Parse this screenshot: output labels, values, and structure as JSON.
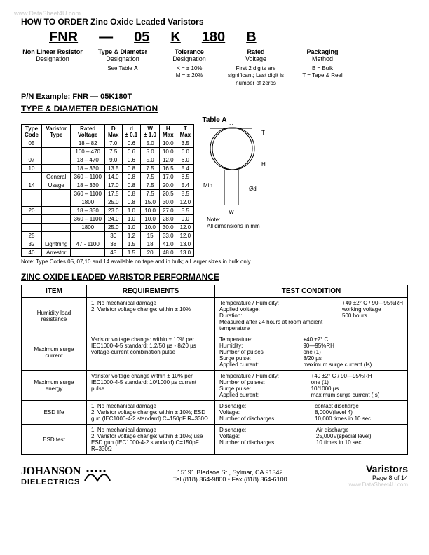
{
  "watermark_top": "www.DataSheet4U.com",
  "title": "HOW TO ORDER Zinc Oxide Leaded Varistors",
  "order_codes": {
    "fnr": "FNR",
    "dash": "—",
    "d05": "05",
    "k": "K",
    "v180": "180",
    "b": "B"
  },
  "order_desc": {
    "fnr": {
      "t": "Non Linear Resistor",
      "s": "Designation"
    },
    "d05": {
      "t": "Type & Diameter",
      "s": "Designation",
      "note": "See Table A"
    },
    "k": {
      "t": "Tolerance",
      "s": "Designation",
      "note": "K = ± 10%\nM = ± 20%"
    },
    "v180": {
      "t": "Rated",
      "s": "Voltage",
      "note": "First 2 digits are significant; Last digit is number of zeros"
    },
    "b": {
      "t": "Packaging",
      "s": "Method",
      "note": "B = Bulk\nT = Tape & Reel"
    }
  },
  "pn_label": "P/N Example:  FNR — 05K180T",
  "section_tableA": "TYPE & DIAMETER DESIGNATION",
  "tableA_caption": "Table A",
  "tableA_headers": [
    "Type Code",
    "Varistor Type",
    "Rated Voltage",
    "D Max",
    "d ± 0.1",
    "W ± 1.0",
    "H Max",
    "T Max"
  ],
  "tableA_rows": [
    [
      "05",
      "",
      "18 – 82",
      "7.0",
      "0.6",
      "5.0",
      "10.0",
      "3.5"
    ],
    [
      "",
      "",
      "100 – 470",
      "7.5",
      "0.6",
      "5.0",
      "10.0",
      "6.0"
    ],
    [
      "07",
      "",
      "18 – 470",
      "9.0",
      "0.6",
      "5.0",
      "12.0",
      "6.0"
    ],
    [
      "10",
      "",
      "18 – 330",
      "13.5",
      "0.8",
      "7.5",
      "16.5",
      "5.4"
    ],
    [
      "",
      "General",
      "360 – 1100",
      "14.0",
      "0.8",
      "7.5",
      "17.0",
      "8.5"
    ],
    [
      "14",
      "Usage",
      "18 – 330",
      "17.0",
      "0.8",
      "7.5",
      "20.0",
      "5.4"
    ],
    [
      "",
      "",
      "360 – 1100",
      "17.5",
      "0.8",
      "7.5",
      "20.5",
      "8.5"
    ],
    [
      "",
      "",
      "1800",
      "25.0",
      "0.8",
      "15.0",
      "30.0",
      "12.0"
    ],
    [
      "20",
      "",
      "18 – 330",
      "23.0",
      "1.0",
      "10.0",
      "27.0",
      "5.5"
    ],
    [
      "",
      "",
      "360 – 1100",
      "24.0",
      "1.0",
      "10.0",
      "28.0",
      "9.0"
    ],
    [
      "",
      "",
      "1800",
      "25.0",
      "1.0",
      "10.0",
      "30.0",
      "12.0"
    ],
    [
      "25",
      "",
      "",
      "30",
      "1.2",
      "15",
      "33.0",
      "12.0"
    ],
    [
      "32",
      "Lightning",
      "47 - 1100",
      "38",
      "1.5",
      "18",
      "41.0",
      "13.0"
    ],
    [
      "40",
      "Arrestor",
      "",
      "45",
      "1.5",
      "20",
      "48.0",
      "13.0"
    ]
  ],
  "diagram_note": "Note:\nAll dimensions in mm",
  "tableA_note": "Note:  Type Codes 05, 07,10 and 14 available on tape and in bulk; all larger sizes in bulk only.",
  "section_perf": "ZINC OXIDE LEADED VARISTOR PERFORMANCE",
  "perf_headers": [
    "ITEM",
    "REQUIREMENTS",
    "TEST CONDITION"
  ],
  "perf": [
    {
      "item": "Humidity load resistance",
      "req": "1. No mechanical damage\n2. Varistor voltage change: within ± 10%",
      "cond": [
        [
          "Temperature / Humidity:",
          "+40 ±2° C / 90—95%RH"
        ],
        [
          "Applied Voltage:",
          "working voltage"
        ],
        [
          "Duration:",
          "500 hours"
        ],
        [
          "Measured after 24 hours at room ambient temperature",
          ""
        ]
      ]
    },
    {
      "item": "Maximum surge current",
      "req": "Varistor voltage change: within ± 10% per IEC1000-4-5 standard: 1.2/50 µs - 8/20 µs voltage-current combination pulse",
      "cond": [
        [
          "Temperature:",
          "+40 ±2° C"
        ],
        [
          "Humidity:",
          "90—95%RH"
        ],
        [
          "Number of pulses",
          "one (1)"
        ],
        [
          "Surge pulse:",
          "8/20 µs"
        ],
        [
          "Applied current:",
          "maximum surge current (Is)"
        ]
      ]
    },
    {
      "item": "Maximum surge energy",
      "req": "Varistor voltage change within ± 10% per IEC1000-4-5 standard: 10/1000 µs current pulse",
      "cond": [
        [
          "Temperature / Humidity:",
          "+40 ±2° C / 90—95%RH"
        ],
        [
          "Number of pulses:",
          "one (1)"
        ],
        [
          "Surge pulse:",
          "10/1000 µs"
        ],
        [
          "Applied current:",
          "maximum surge current (Is)"
        ]
      ]
    },
    {
      "item": "ESD life",
      "req": "1. No mechanical damage\n2. Varistor voltage change: within ± 10%; ESD gun (IEC1000-4-2 standard) C=150pF R=330Ω",
      "cond": [
        [
          "Discharge:",
          "contact discharge"
        ],
        [
          "Voltage:",
          "8,000V(level 4)"
        ],
        [
          "Number of discharges:",
          "10,000 times in 10 sec."
        ]
      ]
    },
    {
      "item": "ESD test",
      "req": "1. No mechanical damage\n2. Varistor voltage change: within ± 10%; use ESD gun (IEC1000-4-2 standard) C=150pF R=330Ω",
      "cond": [
        [
          "Discharge:",
          "Air discharge"
        ],
        [
          "Voltage:",
          "25,000V(special level)"
        ],
        [
          "Number of discharges:",
          "10 times in 10 sec"
        ]
      ]
    }
  ],
  "footer": {
    "brand1": "JOHANSON",
    "brand2": "DIELECTRICS",
    "addr": "15191 Bledsoe St., Sylmar, CA 91342",
    "tel": "Tel (818) 364-9800 • Fax (818) 364-6100",
    "right1": "Varistors",
    "right2": "Page 8 of  14",
    "wm": "www.DataSheet4U.com"
  }
}
